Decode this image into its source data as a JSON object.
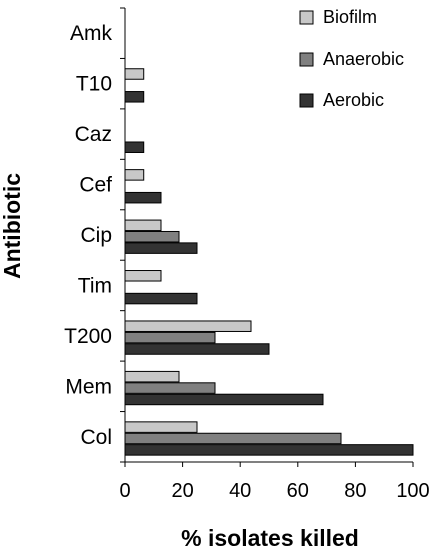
{
  "chart_data": {
    "type": "bar",
    "orientation": "horizontal",
    "categories": [
      "Amk",
      "T10",
      "Caz",
      "Cef",
      "Cip",
      "Tim",
      "T200",
      "Mem",
      "Col"
    ],
    "series": [
      {
        "name": "Biofilm",
        "color": "#c8c8c8",
        "values": [
          0,
          6.5,
          0,
          6.5,
          12.5,
          12.5,
          43.75,
          18.75,
          25
        ]
      },
      {
        "name": "Anaerobic",
        "color": "#808080",
        "values": [
          0,
          0,
          0,
          0,
          18.75,
          0,
          31.25,
          31.25,
          75
        ]
      },
      {
        "name": "Aerobic",
        "color": "#333333",
        "values": [
          0,
          6.5,
          6.5,
          12.5,
          25,
          25,
          50,
          68.75,
          100
        ]
      }
    ],
    "xlabel": "% isolates killed",
    "ylabel": "Antibiotic",
    "xlim": [
      0,
      100
    ],
    "xticks": [
      "0",
      "20",
      "40",
      "60",
      "80",
      "100"
    ],
    "grid": false,
    "legend_position": "top-right"
  }
}
